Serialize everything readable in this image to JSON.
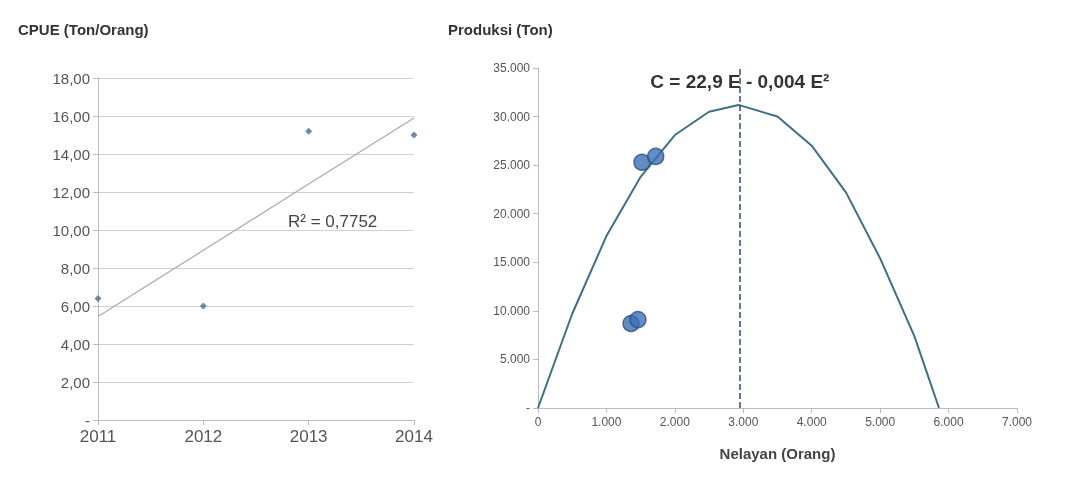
{
  "chart_data": [
    {
      "type": "scatter",
      "ylabel": "CPUE (Ton/Orang)",
      "categories": [
        "2011",
        "2012",
        "2013",
        "2014"
      ],
      "grid": "y",
      "ylim": [
        0,
        18
      ],
      "yticks": [
        {
          "value": 0,
          "label": "-"
        },
        {
          "value": 2,
          "label": "2,00"
        },
        {
          "value": 4,
          "label": "4,00"
        },
        {
          "value": 6,
          "label": "6,00"
        },
        {
          "value": 8,
          "label": "8,00"
        },
        {
          "value": 10,
          "label": "10,00"
        },
        {
          "value": 12,
          "label": "12,00"
        },
        {
          "value": 14,
          "label": "14,00"
        },
        {
          "value": 16,
          "label": "16,00"
        },
        {
          "value": 18,
          "label": "18,00"
        }
      ],
      "annotations": [
        "R² = 0,7752"
      ],
      "series": [
        {
          "color": "#4a6f8a",
          "marker": "diamond",
          "values": [
            6.4,
            6.0,
            15.2,
            15.0
          ]
        },
        {
          "type": "line",
          "color": "#aaaaaa",
          "marker": "none",
          "values": [
            5.45,
            8.93,
            12.42,
            15.9
          ]
        }
      ]
    },
    {
      "type": "scatter",
      "ylabel": "Produksi (Ton)",
      "xlabel": "Nelayan (Orang)",
      "xlim": [
        0,
        7000
      ],
      "xticks": [
        0,
        {
          "value": 1000,
          "label": "1.000"
        },
        {
          "value": 2000,
          "label": "2.000"
        },
        {
          "value": 3000,
          "label": "3.000"
        },
        {
          "value": 4000,
          "label": "4.000"
        },
        {
          "value": 5000,
          "label": "5.000"
        },
        {
          "value": 6000,
          "label": "6.000"
        },
        {
          "value": 7000,
          "label": "7.000"
        }
      ],
      "ylim": [
        0,
        35000
      ],
      "yticks": [
        {
          "value": 0,
          "label": "-"
        },
        {
          "value": 5000,
          "label": "5.000"
        },
        {
          "value": 10000,
          "label": "10.000"
        },
        {
          "value": 15000,
          "label": "15.000"
        },
        {
          "value": 20000,
          "label": "20.000"
        },
        {
          "value": 25000,
          "label": "25.000"
        },
        {
          "value": 30000,
          "label": "30.000"
        },
        {
          "value": 35000,
          "label": "35.000"
        }
      ],
      "annotations": [
        {
          "text": "C = 22,9 E - 0,004 E²",
          "x": 2950,
          "y": 33600
        }
      ],
      "ref_lines": [
        {
          "axis": "x",
          "value": 2950,
          "color": "#2e4f7a",
          "line_style": "dashed"
        }
      ],
      "series": [
        {
          "color": "#3c6fb5",
          "marker": "circle",
          "x": [
            1520,
            1720,
            1360,
            1460
          ],
          "values": [
            25300,
            25900,
            8700,
            9100
          ]
        },
        {
          "type": "line",
          "color": "#3f6f84",
          "marker": "none",
          "x": [
            0,
            500,
            1000,
            1500,
            2000,
            2500,
            2930,
            3500,
            4000,
            4500,
            5000,
            5500,
            5860
          ],
          "values": [
            0,
            9700,
            17700,
            23800,
            28100,
            30500,
            31200,
            30000,
            27000,
            22200,
            15400,
            7400,
            0
          ]
        }
      ]
    }
  ]
}
